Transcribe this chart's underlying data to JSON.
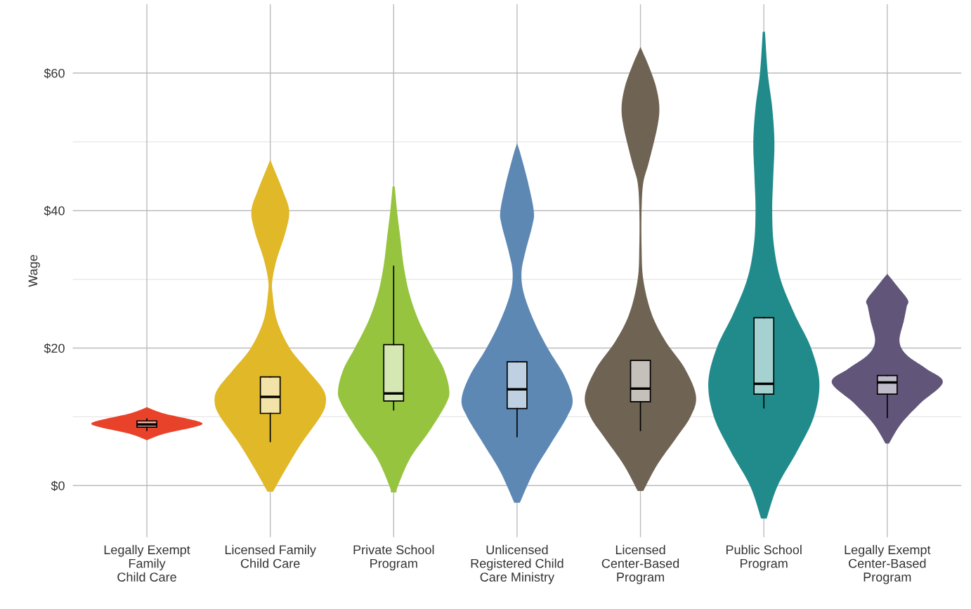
{
  "chart_data": {
    "type": "box",
    "ylabel": "Wage",
    "categories": [
      "Legally Exempt\nFamily\nChild Care",
      "Licensed Family\nChild Care",
      "Private School\nProgram",
      "Unlicensed\nRegistered Child\nCare Ministry",
      "Licensed\nCenter-Based\nProgram",
      "Public School\nProgram",
      "Legally Exempt\nCenter-Based\nProgram"
    ],
    "colors": [
      "#f6b4aa",
      "#f3e3a9",
      "#d5e7b2",
      "#bed0e1",
      "#c5c1ba",
      "#a6d1d1",
      "#c0bbc9"
    ],
    "boxes": [
      {
        "low": 8.0,
        "q1": 8.5,
        "median": 8.9,
        "q3": 9.4,
        "high": 9.7
      },
      {
        "low": 6.4,
        "q1": 10.5,
        "median": 12.9,
        "q3": 15.8,
        "high": 15.8
      },
      {
        "low": 11.0,
        "q1": 12.3,
        "median": 13.4,
        "q3": 20.5,
        "high": 31.9
      },
      {
        "low": 7.1,
        "q1": 11.2,
        "median": 14.0,
        "q3": 18.0,
        "high": 18.0
      },
      {
        "low": 8.0,
        "q1": 12.2,
        "median": 14.1,
        "q3": 18.2,
        "high": 18.2
      },
      {
        "low": 11.3,
        "q1": 13.3,
        "median": 14.8,
        "q3": 24.4,
        "high": 24.4
      },
      {
        "low": 9.9,
        "q1": 13.3,
        "median": 15.0,
        "q3": 16.0,
        "high": 16.0
      }
    ],
    "ylim": [
      -7.5,
      70
    ],
    "yticks": [
      {
        "value": 0,
        "label": "$0"
      },
      {
        "value": 10,
        "label": null
      },
      {
        "value": 20,
        "label": "$20"
      },
      {
        "value": 30,
        "label": null
      },
      {
        "value": 40,
        "label": "$40"
      },
      {
        "value": 50,
        "label": null
      },
      {
        "value": 60,
        "label": "$60"
      }
    ],
    "grid": true
  }
}
